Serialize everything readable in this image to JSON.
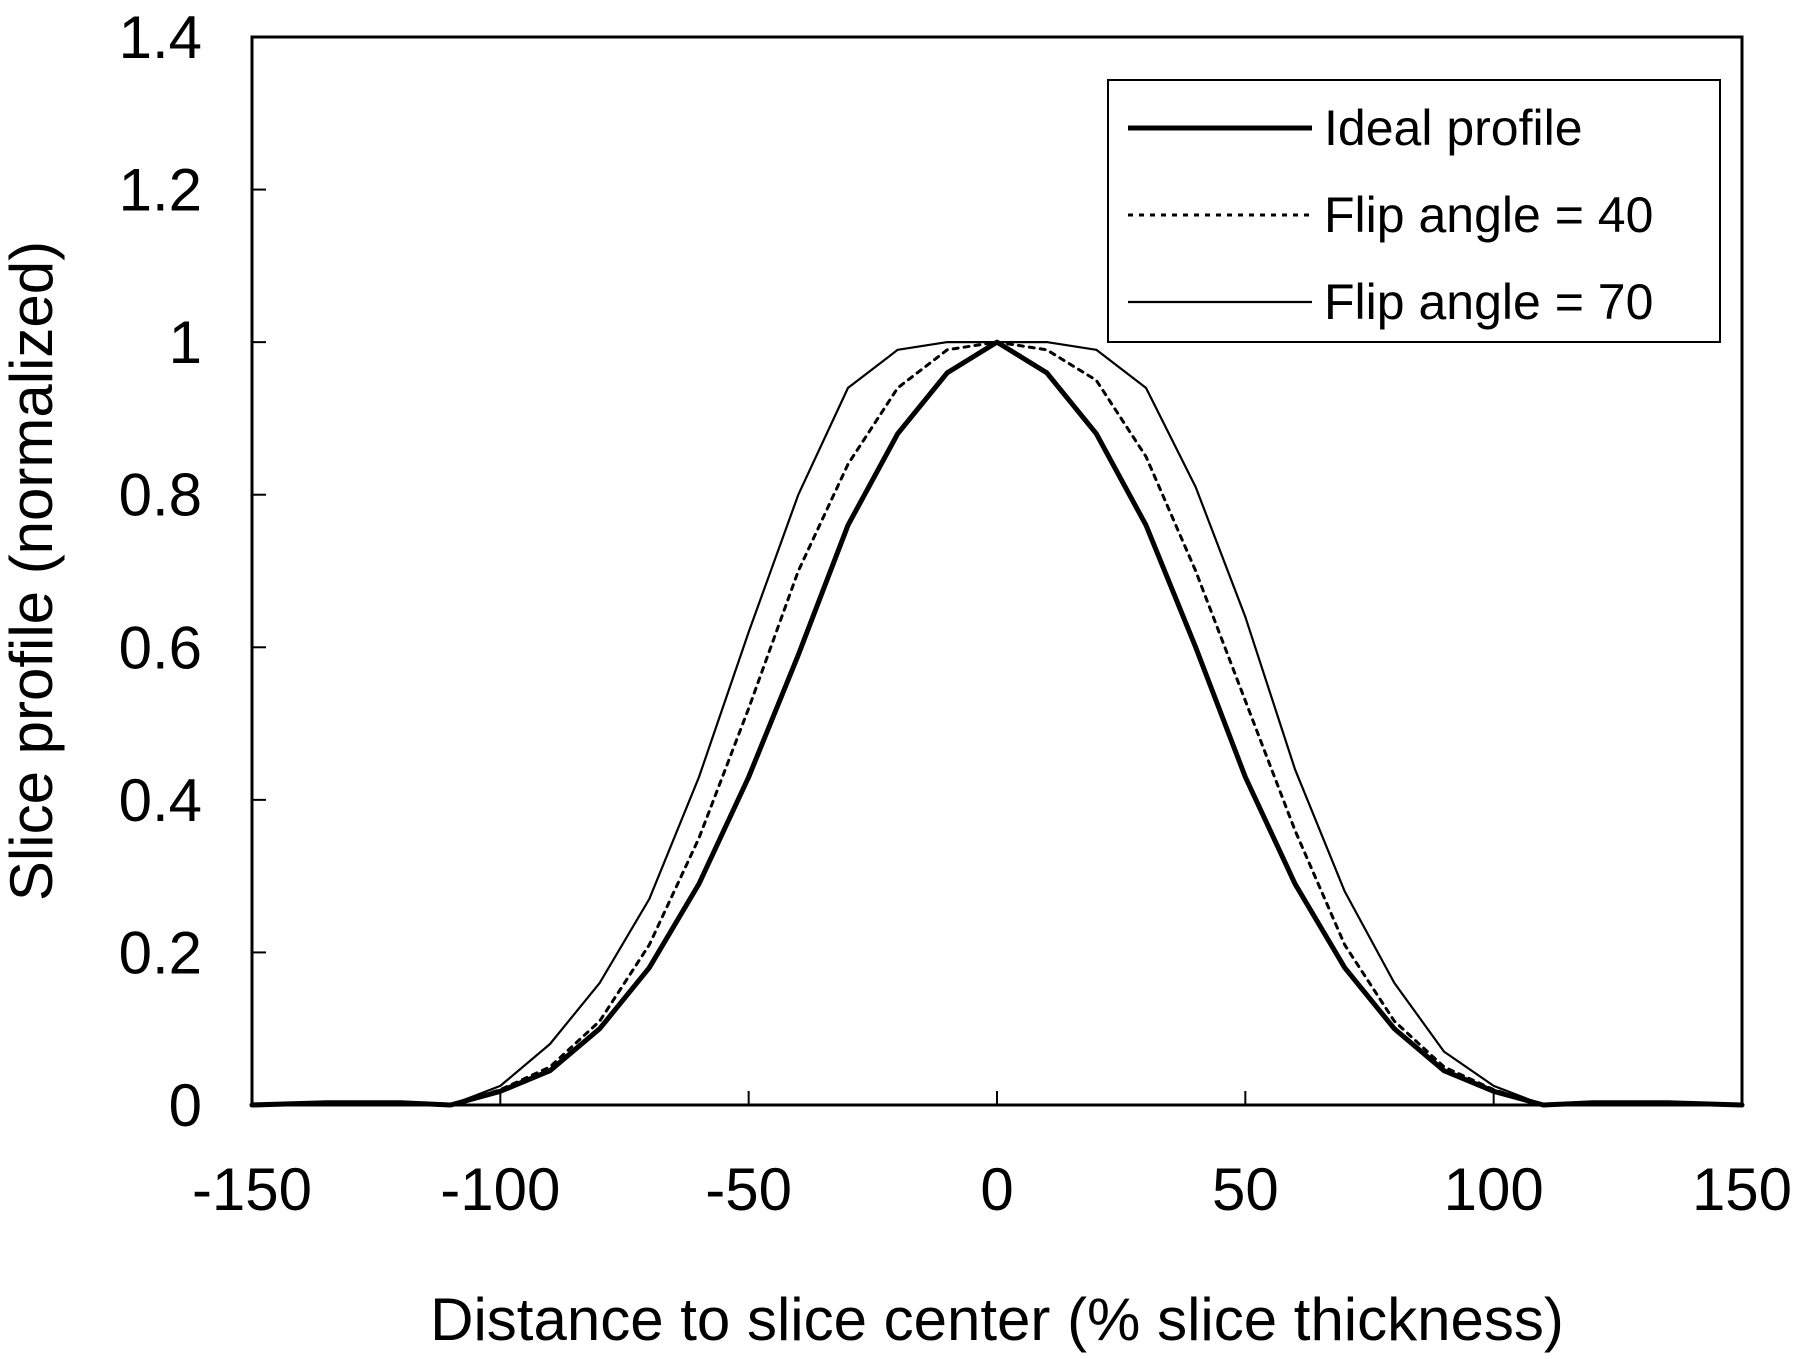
{
  "chart_data": {
    "type": "line",
    "title": "",
    "xlabel": "Distance to slice center (% slice thickness)",
    "ylabel": "Slice profile (normalized)",
    "xlim": [
      -150,
      150
    ],
    "ylim": [
      0,
      1.4
    ],
    "xticks": [
      -150,
      -100,
      -50,
      0,
      50,
      100,
      150
    ],
    "xtick_labels": [
      "-150",
      "-100",
      "-50",
      "0",
      "50",
      "100",
      "150"
    ],
    "yticks": [
      0,
      0.2,
      0.4,
      0.6,
      0.8,
      1.0,
      1.2,
      1.4
    ],
    "ytick_labels": [
      "0",
      "0.2",
      "0.4",
      "0.6",
      "0.8",
      "1",
      "1.2",
      "1.4"
    ],
    "grid": false,
    "legend_position": "top-right",
    "series": [
      {
        "name": "Ideal profile",
        "style": "thick-solid",
        "color": "#000000",
        "x": [
          -150,
          -135,
          -120,
          -110,
          -100,
          -90,
          -80,
          -70,
          -60,
          -50,
          -40,
          -30,
          -20,
          -10,
          0,
          10,
          20,
          30,
          40,
          50,
          60,
          70,
          80,
          90,
          100,
          110,
          120,
          135,
          150
        ],
        "y": [
          0,
          0.003,
          0.003,
          0,
          0.018,
          0.045,
          0.1,
          0.18,
          0.29,
          0.43,
          0.59,
          0.76,
          0.88,
          0.96,
          1.0,
          0.96,
          0.88,
          0.76,
          0.6,
          0.43,
          0.29,
          0.18,
          0.1,
          0.045,
          0.018,
          0,
          0.003,
          0.003,
          0
        ]
      },
      {
        "name": "Flip angle = 40",
        "style": "dotted",
        "color": "#000000",
        "x": [
          -150,
          -135,
          -120,
          -110,
          -100,
          -90,
          -80,
          -70,
          -60,
          -50,
          -40,
          -30,
          -20,
          -10,
          0,
          10,
          20,
          30,
          40,
          50,
          60,
          70,
          80,
          90,
          100,
          110,
          120,
          135,
          150
        ],
        "y": [
          0,
          0.003,
          0.003,
          0,
          0.02,
          0.05,
          0.11,
          0.21,
          0.35,
          0.52,
          0.7,
          0.84,
          0.94,
          0.99,
          1.0,
          0.99,
          0.95,
          0.85,
          0.7,
          0.53,
          0.36,
          0.21,
          0.11,
          0.05,
          0.02,
          0,
          0.003,
          0.003,
          0
        ]
      },
      {
        "name": "Flip angle = 70",
        "style": "thin-solid",
        "color": "#000000",
        "x": [
          -150,
          -135,
          -120,
          -110,
          -100,
          -90,
          -80,
          -70,
          -60,
          -50,
          -40,
          -30,
          -20,
          -10,
          0,
          10,
          20,
          30,
          40,
          50,
          60,
          70,
          80,
          90,
          100,
          110,
          120,
          135,
          150
        ],
        "y": [
          0,
          0.003,
          0.003,
          0,
          0.025,
          0.08,
          0.16,
          0.27,
          0.43,
          0.62,
          0.8,
          0.94,
          0.99,
          1.0,
          1.0,
          1.0,
          0.99,
          0.94,
          0.81,
          0.64,
          0.44,
          0.28,
          0.16,
          0.07,
          0.025,
          0,
          0.003,
          0.003,
          0
        ]
      }
    ]
  }
}
